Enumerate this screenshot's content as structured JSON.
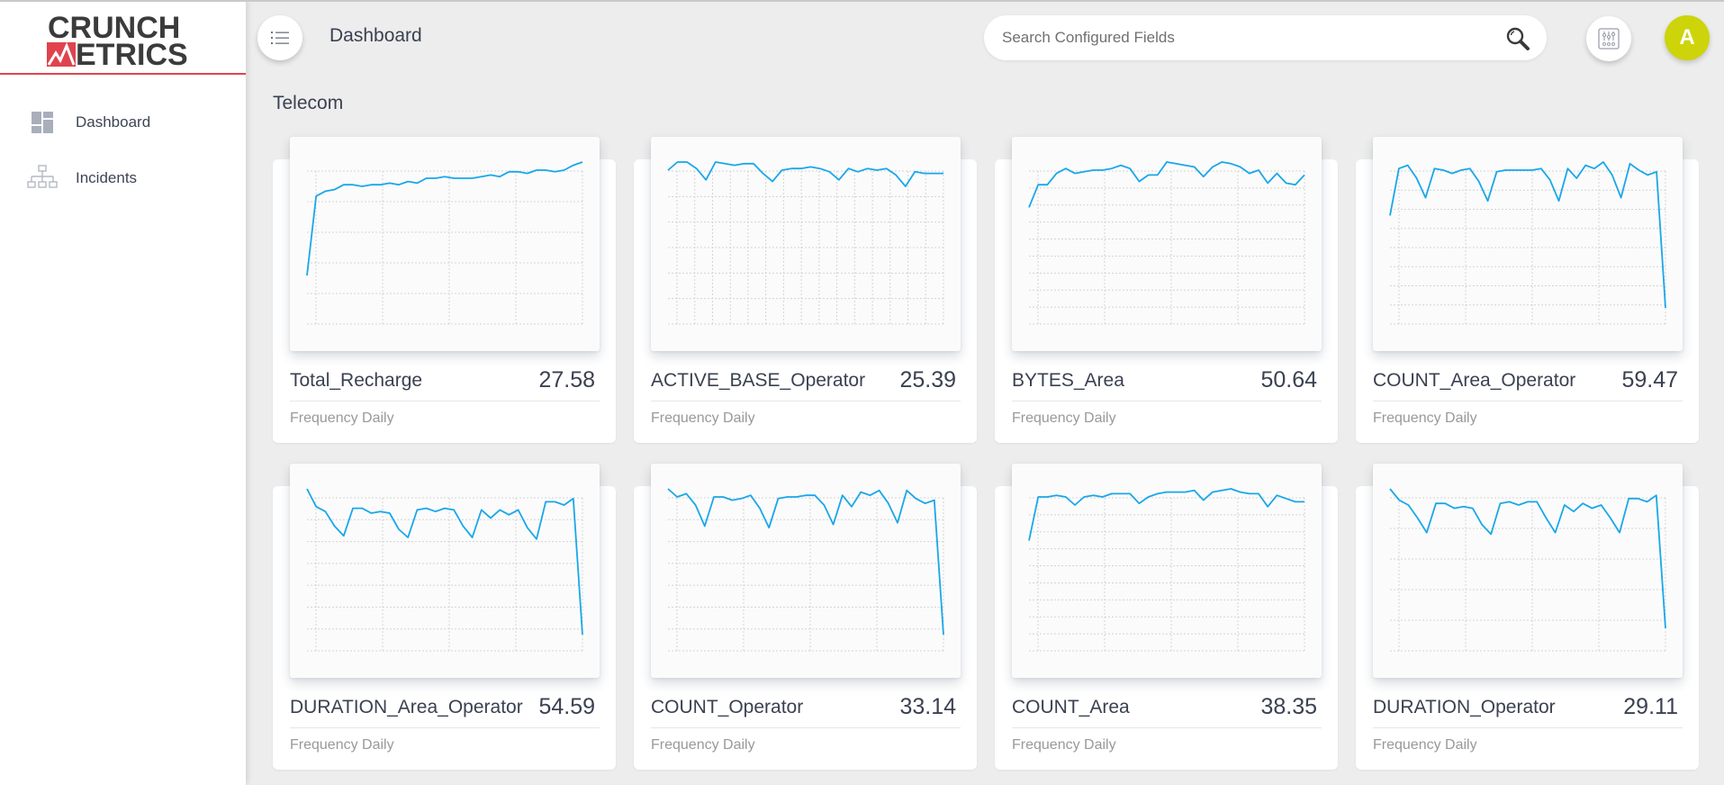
{
  "app": {
    "logo_line1": "CRUNCH",
    "logo_line2": "ETRICS",
    "brand_red": "#e0434e"
  },
  "sidebar": {
    "items": [
      {
        "label": "Dashboard",
        "icon": "dashboard-icon"
      },
      {
        "label": "Incidents",
        "icon": "hierarchy-icon"
      }
    ]
  },
  "header": {
    "title": "Dashboard",
    "search_placeholder": "Search Configured Fields",
    "search_value": "",
    "avatar_initial": "A",
    "avatar_color": "#cdd40a"
  },
  "section": {
    "title": "Telecom"
  },
  "line_color": "#19a7ea",
  "cards": [
    {
      "name": "Total_Recharge",
      "value": "27.58",
      "frequency": "Frequency Daily"
    },
    {
      "name": "ACTIVE_BASE_Operator",
      "value": "25.39",
      "frequency": "Frequency Daily"
    },
    {
      "name": "BYTES_Area",
      "value": "50.64",
      "frequency": "Frequency Daily"
    },
    {
      "name": "COUNT_Area_Operator",
      "value": "59.47",
      "frequency": "Frequency Daily"
    },
    {
      "name": "DURATION_Area_Operator",
      "value": "54.59",
      "frequency": "Frequency Daily"
    },
    {
      "name": "COUNT_Operator",
      "value": "33.14",
      "frequency": "Frequency Daily"
    },
    {
      "name": "COUNT_Area",
      "value": "38.35",
      "frequency": "Frequency Daily"
    },
    {
      "name": "DURATION_Operator",
      "value": "29.11",
      "frequency": "Frequency Daily"
    }
  ],
  "chart_data": [
    {
      "type": "line",
      "title": "Total_Recharge",
      "grid": true,
      "xlabel": "",
      "ylabel": "",
      "ylim": [
        0,
        100
      ],
      "values": [
        30,
        79,
        82,
        83,
        86,
        86,
        85,
        86,
        86,
        87,
        86,
        88,
        87,
        90,
        90,
        91,
        90,
        90,
        90,
        91,
        92,
        91,
        94,
        94,
        93,
        95,
        95,
        94,
        95,
        98,
        100
      ]
    },
    {
      "type": "line",
      "title": "ACTIVE_BASE_Operator",
      "grid": true,
      "xlabel": "",
      "ylabel": "",
      "ylim": [
        0,
        100
      ],
      "values": [
        95,
        100,
        100,
        96,
        89,
        100,
        99,
        98,
        99,
        99,
        93,
        88,
        95,
        96,
        96,
        97,
        96,
        94,
        89,
        96,
        94,
        96,
        95,
        96,
        92,
        85,
        94,
        93,
        93,
        93
      ]
    },
    {
      "type": "line",
      "title": "BYTES_Area",
      "grid": true,
      "xlabel": "",
      "ylabel": "",
      "ylim": [
        0,
        100
      ],
      "values": [
        72,
        86,
        86,
        93,
        96,
        93,
        94,
        95,
        95,
        96,
        98,
        96,
        88,
        92,
        92,
        100,
        99,
        98,
        97,
        91,
        97,
        100,
        99,
        97,
        93,
        95,
        87,
        93,
        87,
        86,
        92
      ]
    },
    {
      "type": "line",
      "title": "COUNT_Area_Operator",
      "grid": true,
      "xlabel": "",
      "ylabel": "",
      "ylim": [
        0,
        100
      ],
      "values": [
        67,
        96,
        98,
        90,
        78,
        96,
        95,
        93,
        95,
        96,
        88,
        76,
        94,
        95,
        95,
        95,
        95,
        96,
        89,
        76,
        96,
        90,
        98,
        96,
        100,
        92,
        78,
        99,
        95,
        92,
        94,
        10
      ]
    },
    {
      "type": "line",
      "title": "DURATION_Area_Operator",
      "grid": true,
      "xlabel": "",
      "ylabel": "",
      "ylim": [
        0,
        100
      ],
      "values": [
        100,
        89,
        86,
        77,
        71,
        88,
        88,
        85,
        86,
        85,
        75,
        70,
        87,
        88,
        86,
        88,
        87,
        77,
        70,
        87,
        82,
        87,
        84,
        87,
        76,
        69,
        92,
        92,
        90,
        94,
        10
      ]
    },
    {
      "type": "line",
      "title": "COUNT_Operator",
      "grid": true,
      "xlabel": "",
      "ylabel": "",
      "ylim": [
        0,
        100
      ],
      "values": [
        100,
        95,
        97,
        90,
        77,
        95,
        95,
        93,
        94,
        96,
        88,
        76,
        94,
        95,
        95,
        96,
        96,
        90,
        78,
        96,
        89,
        98,
        96,
        99,
        91,
        79,
        99,
        94,
        91,
        93,
        10
      ]
    },
    {
      "type": "line",
      "title": "COUNT_Area",
      "grid": true,
      "xlabel": "",
      "ylabel": "",
      "ylim": [
        0,
        100
      ],
      "values": [
        68,
        95,
        95,
        96,
        95,
        90,
        95,
        96,
        95,
        97,
        97,
        97,
        91,
        95,
        97,
        98,
        98,
        98,
        99,
        93,
        98,
        99,
        100,
        98,
        97,
        97,
        89,
        96,
        94,
        92,
        92
      ]
    },
    {
      "type": "line",
      "title": "DURATION_Operator",
      "grid": true,
      "xlabel": "",
      "ylabel": "",
      "ylim": [
        0,
        100
      ],
      "values": [
        100,
        93,
        90,
        82,
        73,
        91,
        91,
        88,
        89,
        88,
        78,
        72,
        91,
        92,
        90,
        92,
        92,
        82,
        73,
        90,
        86,
        91,
        88,
        90,
        82,
        73,
        94,
        94,
        92,
        96,
        14
      ]
    }
  ]
}
